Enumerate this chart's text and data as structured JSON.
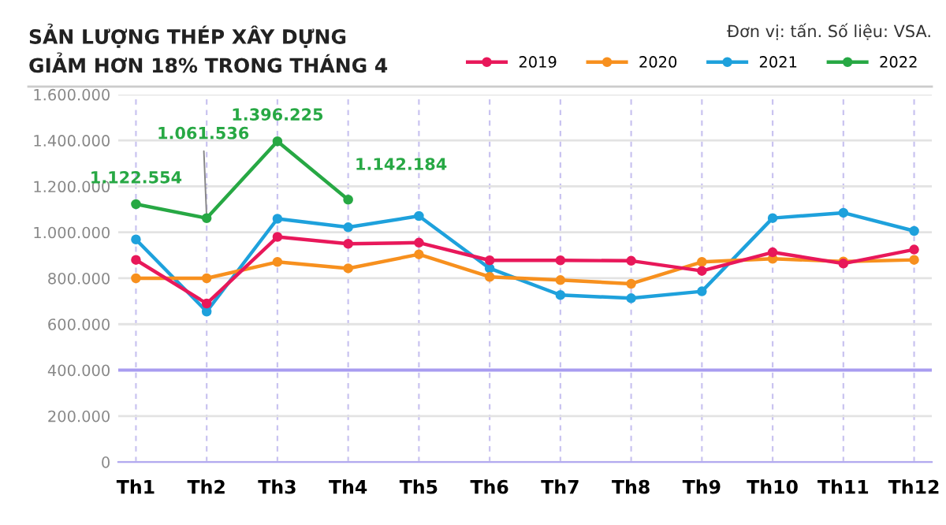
{
  "chart_data": {
    "type": "line",
    "title": "SẢN LƯỢNG THÉP XÂY DỰNG\nGIẢM HƠN 18% TRONG THÁNG 4",
    "annotations": [
      "Đơn vị: tấn. Số liệu: VSA."
    ],
    "categories": [
      "Th1",
      "Th2",
      "Th3",
      "Th4",
      "Th5",
      "Th6",
      "Th7",
      "Th8",
      "Th9",
      "Th10",
      "Th11",
      "Th12"
    ],
    "series": [
      {
        "name": "2019",
        "color": "#e8185a",
        "values": [
          880000,
          690000,
          980000,
          950000,
          955000,
          878000,
          878000,
          876000,
          832000,
          913000,
          864000,
          925000
        ]
      },
      {
        "name": "2020",
        "color": "#f7901e",
        "values": [
          800000,
          800000,
          871000,
          843000,
          904000,
          806000,
          792000,
          776000,
          871000,
          885000,
          873000,
          880000
        ]
      },
      {
        "name": "2021",
        "color": "#1ea1dc",
        "values": [
          969000,
          655000,
          1059000,
          1022000,
          1071000,
          843000,
          727000,
          713000,
          743000,
          1062000,
          1085000,
          1006000
        ]
      },
      {
        "name": "2022",
        "color": "#27a844",
        "values": [
          1122554,
          1061536,
          1396225,
          1142184,
          null,
          null,
          null,
          null,
          null,
          null,
          null,
          null
        ],
        "value_labels": [
          "1.122.554",
          "1.061.536",
          "1.396.225",
          "1.142.184",
          null,
          null,
          null,
          null,
          null,
          null,
          null,
          null
        ]
      }
    ],
    "ylim": [
      0,
      1600000
    ],
    "yticks": [
      {
        "value": 0,
        "label": "0"
      },
      {
        "value": 200000,
        "label": "200.000"
      },
      {
        "value": 400000,
        "label": "400.000"
      },
      {
        "value": 600000,
        "label": "600.000"
      },
      {
        "value": 800000,
        "label": "800.000"
      },
      {
        "value": 1000000,
        "label": "1.000.000"
      },
      {
        "value": 1200000,
        "label": "1.200.000"
      },
      {
        "value": 1400000,
        "label": "1.400.000"
      },
      {
        "value": 1600000,
        "label": "1.600.000"
      }
    ],
    "ref_lines": [
      {
        "axis": "y",
        "value": 400000,
        "label": null,
        "color": "#a89cf0"
      }
    ],
    "grid": true,
    "legend": "top right",
    "marker": "circle",
    "line_style": "solid"
  }
}
